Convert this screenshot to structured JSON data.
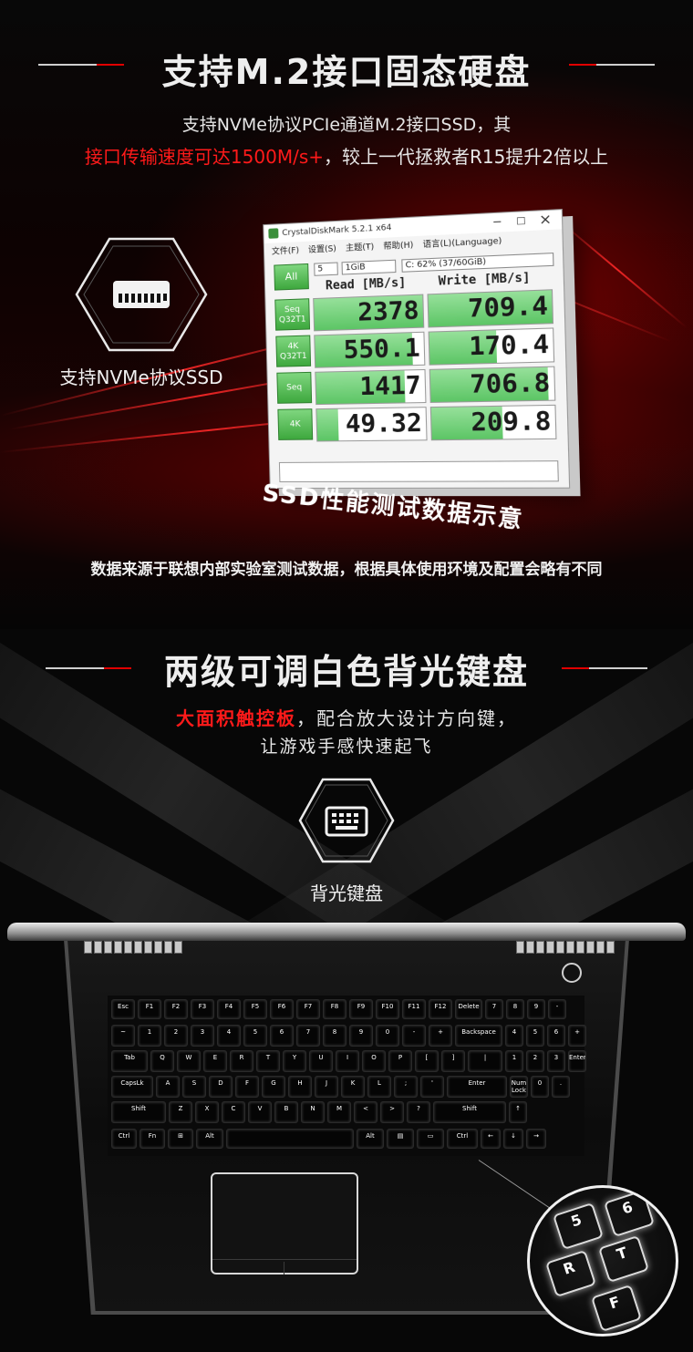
{
  "section1": {
    "heading": "支持M.2接口固态硬盘",
    "line1": "支持NVMe协议PCIe通道M.2接口SSD，其",
    "line2_red": "接口传输速度可达1500M/s+",
    "line2_rest": "，较上一代拯救者R15提升2倍以上",
    "icon_label": "支持NVMe协议SSD",
    "caption": "SSD性能测试数据示意",
    "note": "数据来源于联想内部实验室测试数据，根据具体使用环境及配置会略有不同"
  },
  "cdm": {
    "title": "CrystalDiskMark 5.2.1 x64",
    "controls": {
      "min": "−",
      "max": "□",
      "close": "×"
    },
    "menu": [
      "文件(F)",
      "设置(S)",
      "主题(T)",
      "帮助(H)",
      "语言(L)(Language)"
    ],
    "all_label": "All",
    "count": "5",
    "size": "1GiB",
    "drive": "C: 62% (37/60GiB)",
    "read_header": "Read [MB/s]",
    "write_header": "Write [MB/s]",
    "rows": [
      {
        "label_top": "Seq",
        "label_bottom": "Q32T1",
        "read": "2378",
        "write": "709.4",
        "read_fill": 1.0,
        "write_fill": 1.0
      },
      {
        "label_top": "4K",
        "label_bottom": "Q32T1",
        "read": "550.1",
        "write": "170.4",
        "read_fill": 0.9,
        "write_fill": 0.55
      },
      {
        "label_top": "Seq",
        "label_bottom": "",
        "read": "1417",
        "write": "706.8",
        "read_fill": 0.82,
        "write_fill": 0.95
      },
      {
        "label_top": "4K",
        "label_bottom": "",
        "read": "49.32",
        "write": "209.8",
        "read_fill": 0.2,
        "write_fill": 0.58
      }
    ]
  },
  "section2": {
    "heading": "两级可调白色背光键盘",
    "line1_red": "大面积触控板",
    "line1_rest": "，配合放大设计方向键，",
    "line2": "让游戏手感快速起飞",
    "icon_label": "背光键盘"
  },
  "keyboard": {
    "row1": [
      "Esc",
      "F1",
      "F2",
      "F3",
      "F4",
      "F5",
      "F6",
      "F7",
      "F8",
      "F9",
      "F10",
      "F11",
      "F12",
      "Delete",
      "7",
      "8",
      "9",
      "-"
    ],
    "row2": [
      "~",
      "1",
      "2",
      "3",
      "4",
      "5",
      "6",
      "7",
      "8",
      "9",
      "0",
      "-",
      "+",
      "Backspace",
      "4",
      "5",
      "6",
      "+"
    ],
    "row3": [
      "Tab",
      "Q",
      "W",
      "E",
      "R",
      "T",
      "Y",
      "U",
      "I",
      "O",
      "P",
      "[",
      "]",
      "|",
      "1",
      "2",
      "3",
      "Enter"
    ],
    "row4": [
      "CapsLk",
      "A",
      "S",
      "D",
      "F",
      "G",
      "H",
      "J",
      "K",
      "L",
      ";",
      "'",
      "Enter",
      "Num Lock",
      "0",
      "."
    ],
    "row5": [
      "Shift",
      "Z",
      "X",
      "C",
      "V",
      "B",
      "N",
      "M",
      "<",
      ">",
      "?",
      "Shift",
      "↑"
    ],
    "row6": [
      "Ctrl",
      "Fn",
      "⊞",
      "Alt",
      "",
      "Alt",
      "▤",
      "▭",
      "Ctrl",
      "←",
      "↓",
      "→"
    ],
    "zoom_keys": [
      "5",
      "6",
      "R",
      "T",
      "F"
    ]
  }
}
